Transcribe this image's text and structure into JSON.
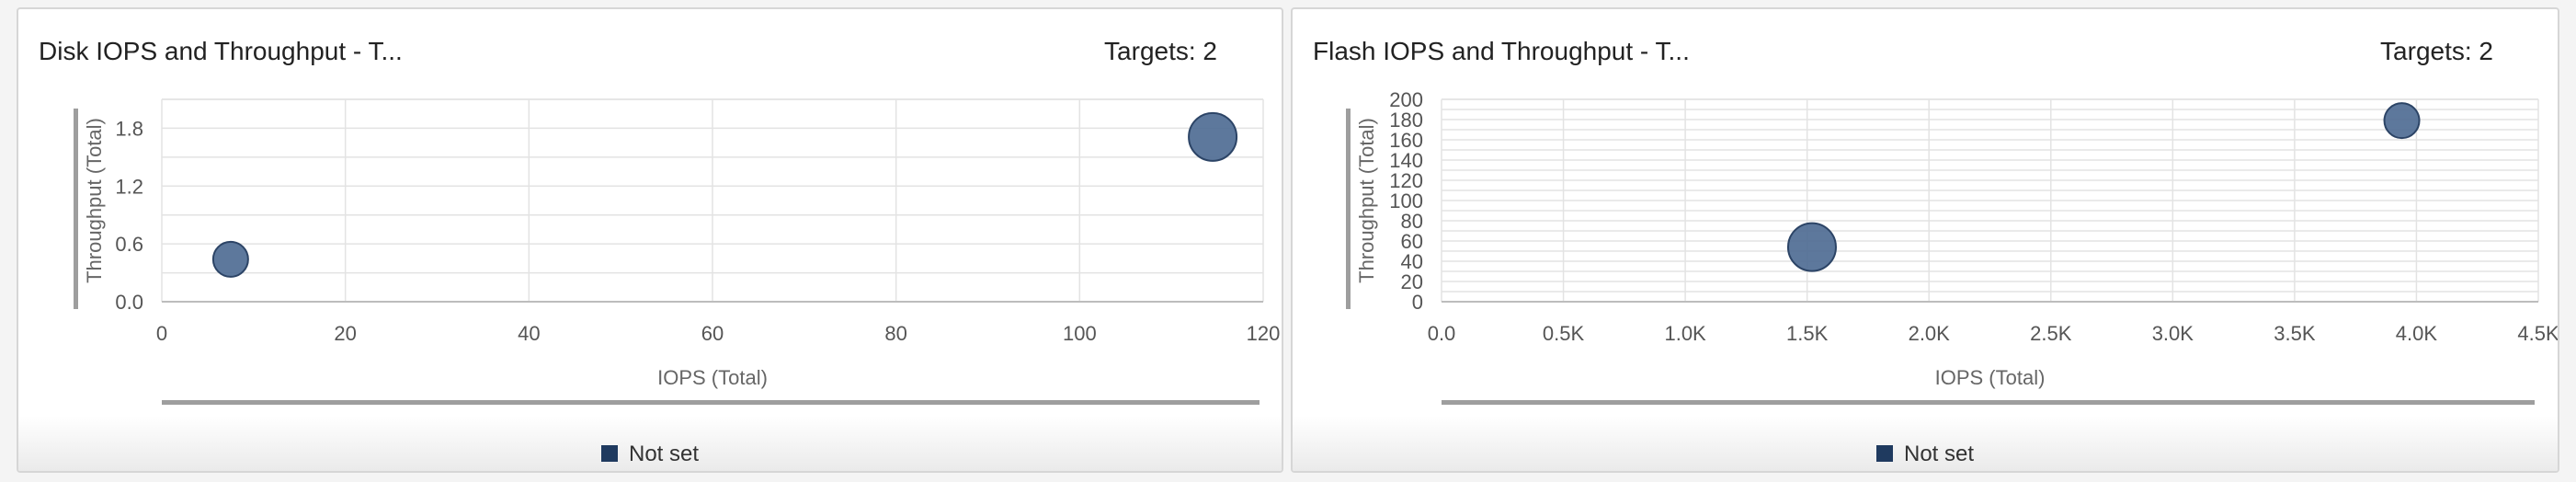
{
  "panels": [
    {
      "title": "Disk IOPS and Throughput - T...",
      "targets": "Targets: 2",
      "legend_label": "Not set"
    },
    {
      "title": "Flash IOPS and Throughput - T...",
      "targets": "Targets: 2",
      "legend_label": "Not set"
    }
  ],
  "colors": {
    "bubble_fill": "#4f6d94",
    "bubble_stroke": "#2c4466",
    "legend_swatch": "#1f3a5f",
    "grid": "#e3e3e3",
    "axis_bar": "#9e9e9e"
  },
  "chart_data": [
    {
      "type": "scatter",
      "title": "Disk IOPS and Throughput - T...",
      "xlabel": "IOPS (Total)",
      "ylabel": "Throughput (Total)",
      "xlim": [
        0,
        120
      ],
      "ylim": [
        0,
        2.1
      ],
      "x_ticks": [
        0,
        20,
        40,
        60,
        80,
        100,
        120
      ],
      "x_tick_labels": [
        "0",
        "20",
        "40",
        "60",
        "80",
        "100",
        "120"
      ],
      "y_ticks": [
        0,
        0.6,
        1.2,
        1.8
      ],
      "y_tick_labels": [
        "0.0",
        "0.6",
        "1.2",
        "1.8"
      ],
      "grid": true,
      "series": [
        {
          "name": "Not set",
          "points": [
            {
              "x": 7.5,
              "y": 0.44,
              "size": "small"
            },
            {
              "x": 114.5,
              "y": 1.71,
              "size": "large"
            }
          ]
        }
      ]
    },
    {
      "type": "scatter",
      "title": "Flash IOPS and Throughput - T...",
      "xlabel": "IOPS (Total)",
      "ylabel": "Throughput (Total)",
      "xlim": [
        0,
        4500
      ],
      "ylim": [
        0,
        200
      ],
      "x_ticks": [
        0,
        500,
        1000,
        1500,
        2000,
        2500,
        3000,
        3500,
        4000,
        4500
      ],
      "x_tick_labels": [
        "0.0",
        "0.5K",
        "1.0K",
        "1.5K",
        "2.0K",
        "2.5K",
        "3.0K",
        "3.5K",
        "4.0K",
        "4.5K"
      ],
      "y_ticks": [
        0,
        20,
        40,
        60,
        80,
        100,
        120,
        140,
        160,
        180,
        200
      ],
      "y_tick_labels": [
        "0",
        "20",
        "40",
        "60",
        "80",
        "100",
        "120",
        "140",
        "160",
        "180",
        "200"
      ],
      "grid": true,
      "series": [
        {
          "name": "Not set",
          "points": [
            {
              "x": 1520,
              "y": 54,
              "size": "large"
            },
            {
              "x": 3940,
              "y": 179,
              "size": "small"
            }
          ]
        }
      ]
    }
  ]
}
